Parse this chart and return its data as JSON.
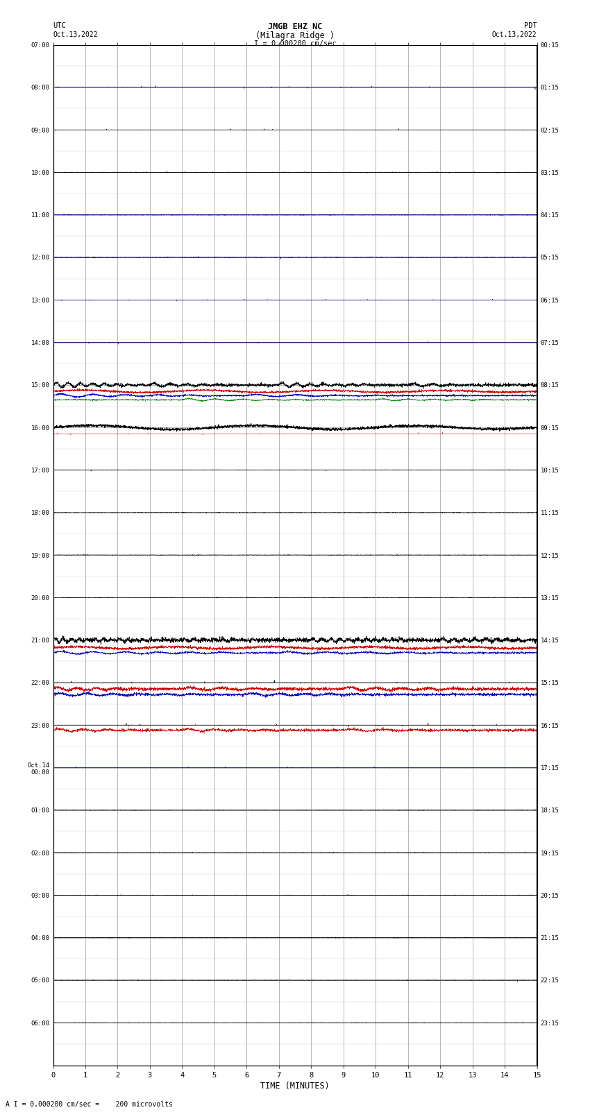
{
  "title_line1": "JMGB EHZ NC",
  "title_line2": "(Milagra Ridge )",
  "scale_label": "I = 0.000200 cm/sec",
  "left_label": "UTC",
  "right_label": "PDT",
  "date_left": "Oct.13,2022",
  "date_right": "Oct.13,2022",
  "bottom_label": "TIME (MINUTES)",
  "bottom_note": "A I = 0.000200 cm/sec =    200 microvolts",
  "utc_times": [
    "07:00",
    "08:00",
    "09:00",
    "10:00",
    "11:00",
    "12:00",
    "13:00",
    "14:00",
    "15:00",
    "16:00",
    "17:00",
    "18:00",
    "19:00",
    "20:00",
    "21:00",
    "22:00",
    "23:00",
    "Oct.14\n00:00",
    "01:00",
    "02:00",
    "03:00",
    "04:00",
    "05:00",
    "06:00"
  ],
  "pdt_times": [
    "00:15",
    "01:15",
    "02:15",
    "03:15",
    "04:15",
    "05:15",
    "06:15",
    "07:15",
    "08:15",
    "09:15",
    "10:15",
    "11:15",
    "12:15",
    "13:15",
    "14:15",
    "15:15",
    "16:15",
    "17:15",
    "18:15",
    "19:15",
    "20:15",
    "21:15",
    "22:15",
    "23:15"
  ],
  "n_rows": 24,
  "minutes_per_row": 15,
  "bg_color": "#ffffff",
  "trace_color_black": "#000000",
  "trace_color_blue": "#0000bb",
  "trace_color_red": "#cc0000",
  "trace_color_green": "#008800",
  "grid_color_major": "#999999",
  "grid_color_minor": "#cccccc",
  "figsize": [
    8.5,
    16.13
  ]
}
